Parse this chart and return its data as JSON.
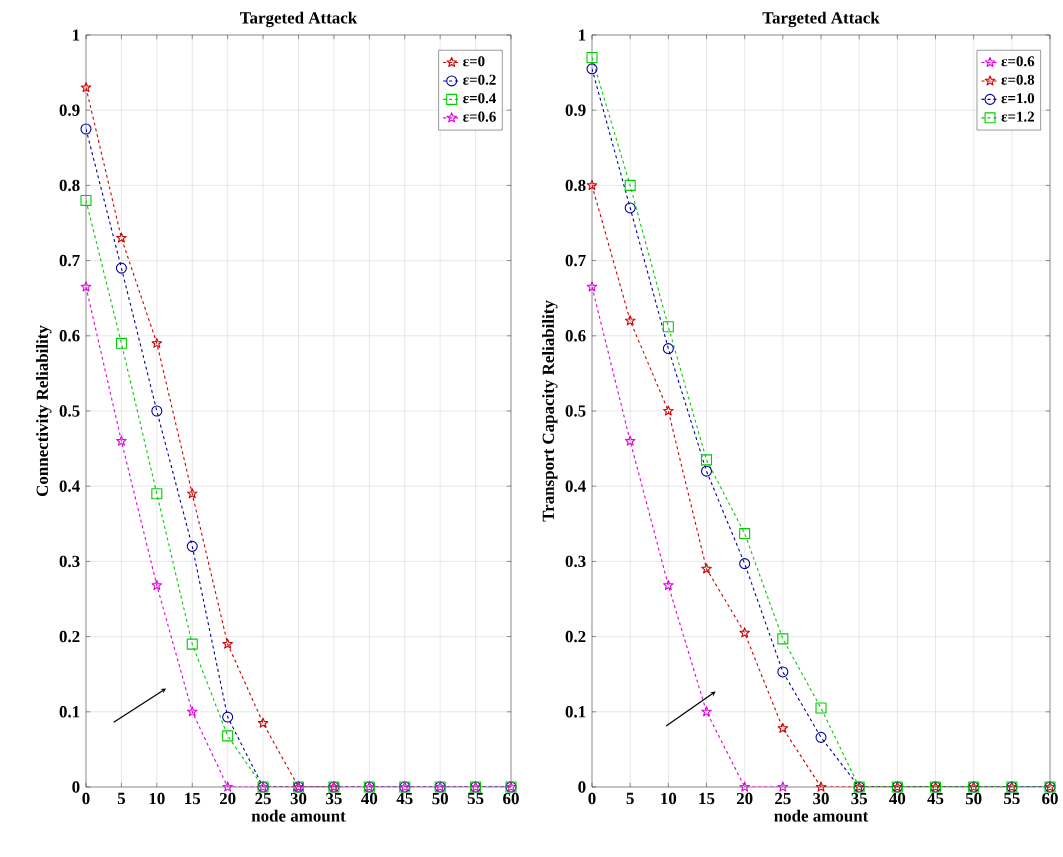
{
  "chart_data": [
    {
      "type": "line",
      "title": "Targeted Attack",
      "xlabel": "node amount",
      "ylabel": "Connectivity Reliability",
      "x": [
        0,
        5,
        10,
        15,
        20,
        25,
        30,
        35,
        40,
        45,
        50,
        55,
        60
      ],
      "xlim": [
        0,
        60
      ],
      "ylim": [
        0,
        1
      ],
      "xticks": [
        0,
        5,
        10,
        15,
        20,
        25,
        30,
        35,
        40,
        45,
        50,
        55,
        60
      ],
      "yticks": [
        0,
        0.1,
        0.2,
        0.3,
        0.4,
        0.5,
        0.6,
        0.7,
        0.8,
        0.9,
        1
      ],
      "grid": true,
      "legend": "top right",
      "line_style": "dashed",
      "series": [
        {
          "name": "ε=0",
          "color": "#d00000",
          "marker": "star",
          "values": [
            0.93,
            0.73,
            0.59,
            0.39,
            0.19,
            0.085,
            0,
            0,
            null,
            null,
            null,
            null,
            null
          ]
        },
        {
          "name": "ε=0.2",
          "color": "#0000a0",
          "marker": "circle",
          "values": [
            0.875,
            0.69,
            0.5,
            0.32,
            0.093,
            0,
            0,
            0,
            0,
            0,
            0,
            0,
            0
          ]
        },
        {
          "name": "ε=0.4",
          "color": "#00cc00",
          "marker": "square",
          "values": [
            0.78,
            0.59,
            0.39,
            0.19,
            0.068,
            0,
            0,
            0,
            0,
            0,
            0,
            0,
            0
          ]
        },
        {
          "name": "ε=0.6",
          "color": "#e000e0",
          "marker": "star",
          "values": [
            0.665,
            0.46,
            0.268,
            0.1,
            0,
            0,
            0,
            0,
            0,
            0,
            0,
            0,
            0
          ]
        }
      ]
    },
    {
      "type": "line",
      "title": "Targeted Attack",
      "xlabel": "node amount",
      "ylabel": "Transport Capacity Reliability",
      "x": [
        0,
        5,
        10,
        15,
        20,
        25,
        30,
        35,
        40,
        45,
        50,
        55,
        60
      ],
      "xlim": [
        0,
        60
      ],
      "ylim": [
        0,
        1
      ],
      "xticks": [
        0,
        5,
        10,
        15,
        20,
        25,
        30,
        35,
        40,
        45,
        50,
        55,
        60
      ],
      "yticks": [
        0,
        0.1,
        0.2,
        0.3,
        0.4,
        0.5,
        0.6,
        0.7,
        0.8,
        0.9,
        1
      ],
      "grid": true,
      "legend": "top right",
      "line_style": "dashed",
      "series": [
        {
          "name": "ε=0.6",
          "color": "#e000e0",
          "marker": "star",
          "values": [
            0.665,
            0.46,
            0.268,
            0.1,
            0,
            0,
            null,
            null,
            null,
            null,
            null,
            null,
            null
          ]
        },
        {
          "name": "ε=0.8",
          "color": "#d00000",
          "marker": "star",
          "values": [
            0.8,
            0.62,
            0.5,
            0.29,
            0.205,
            0.078,
            0,
            0,
            0,
            0,
            0,
            0,
            0
          ]
        },
        {
          "name": "ε=1.0",
          "color": "#0000a0",
          "marker": "circle",
          "values": [
            0.955,
            0.77,
            0.583,
            0.42,
            0.297,
            0.153,
            0.066,
            0,
            0,
            0,
            0,
            0,
            0
          ]
        },
        {
          "name": "ε=1.2",
          "color": "#00cc00",
          "marker": "square",
          "values": [
            0.97,
            0.8,
            0.612,
            0.435,
            0.337,
            0.197,
            0.105,
            0,
            0,
            0,
            0,
            0,
            0
          ]
        }
      ]
    }
  ]
}
